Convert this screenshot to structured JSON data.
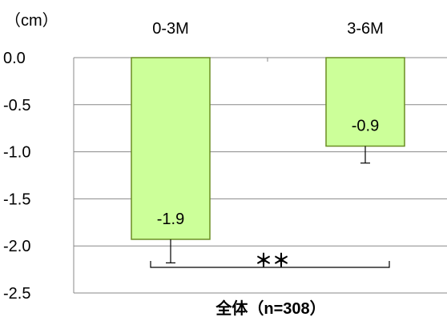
{
  "chart_data": {
    "type": "bar",
    "unit_label": "（cm）",
    "categories": [
      "0-3M",
      "3-6M"
    ],
    "values": [
      -1.93,
      -0.94
    ],
    "value_labels": [
      "-1.9",
      "-0.9"
    ],
    "error_bars": [
      0.25,
      0.18
    ],
    "ylim": [
      -2.5,
      0.0
    ],
    "yticks": [
      "0.0",
      "-0.5",
      "-1.0",
      "-1.5",
      "-2.0",
      "-2.5"
    ],
    "ytick_values": [
      0.0,
      -0.5,
      -1.0,
      -1.5,
      -2.0,
      -2.5
    ],
    "xlabel": "全体（n=308）",
    "significance": "＊＊",
    "grid": true,
    "category_axis_position": "top",
    "colors": {
      "bar_fill": "#ccff99",
      "bar_stroke": "#6b8e23",
      "grid": "#888888"
    }
  }
}
